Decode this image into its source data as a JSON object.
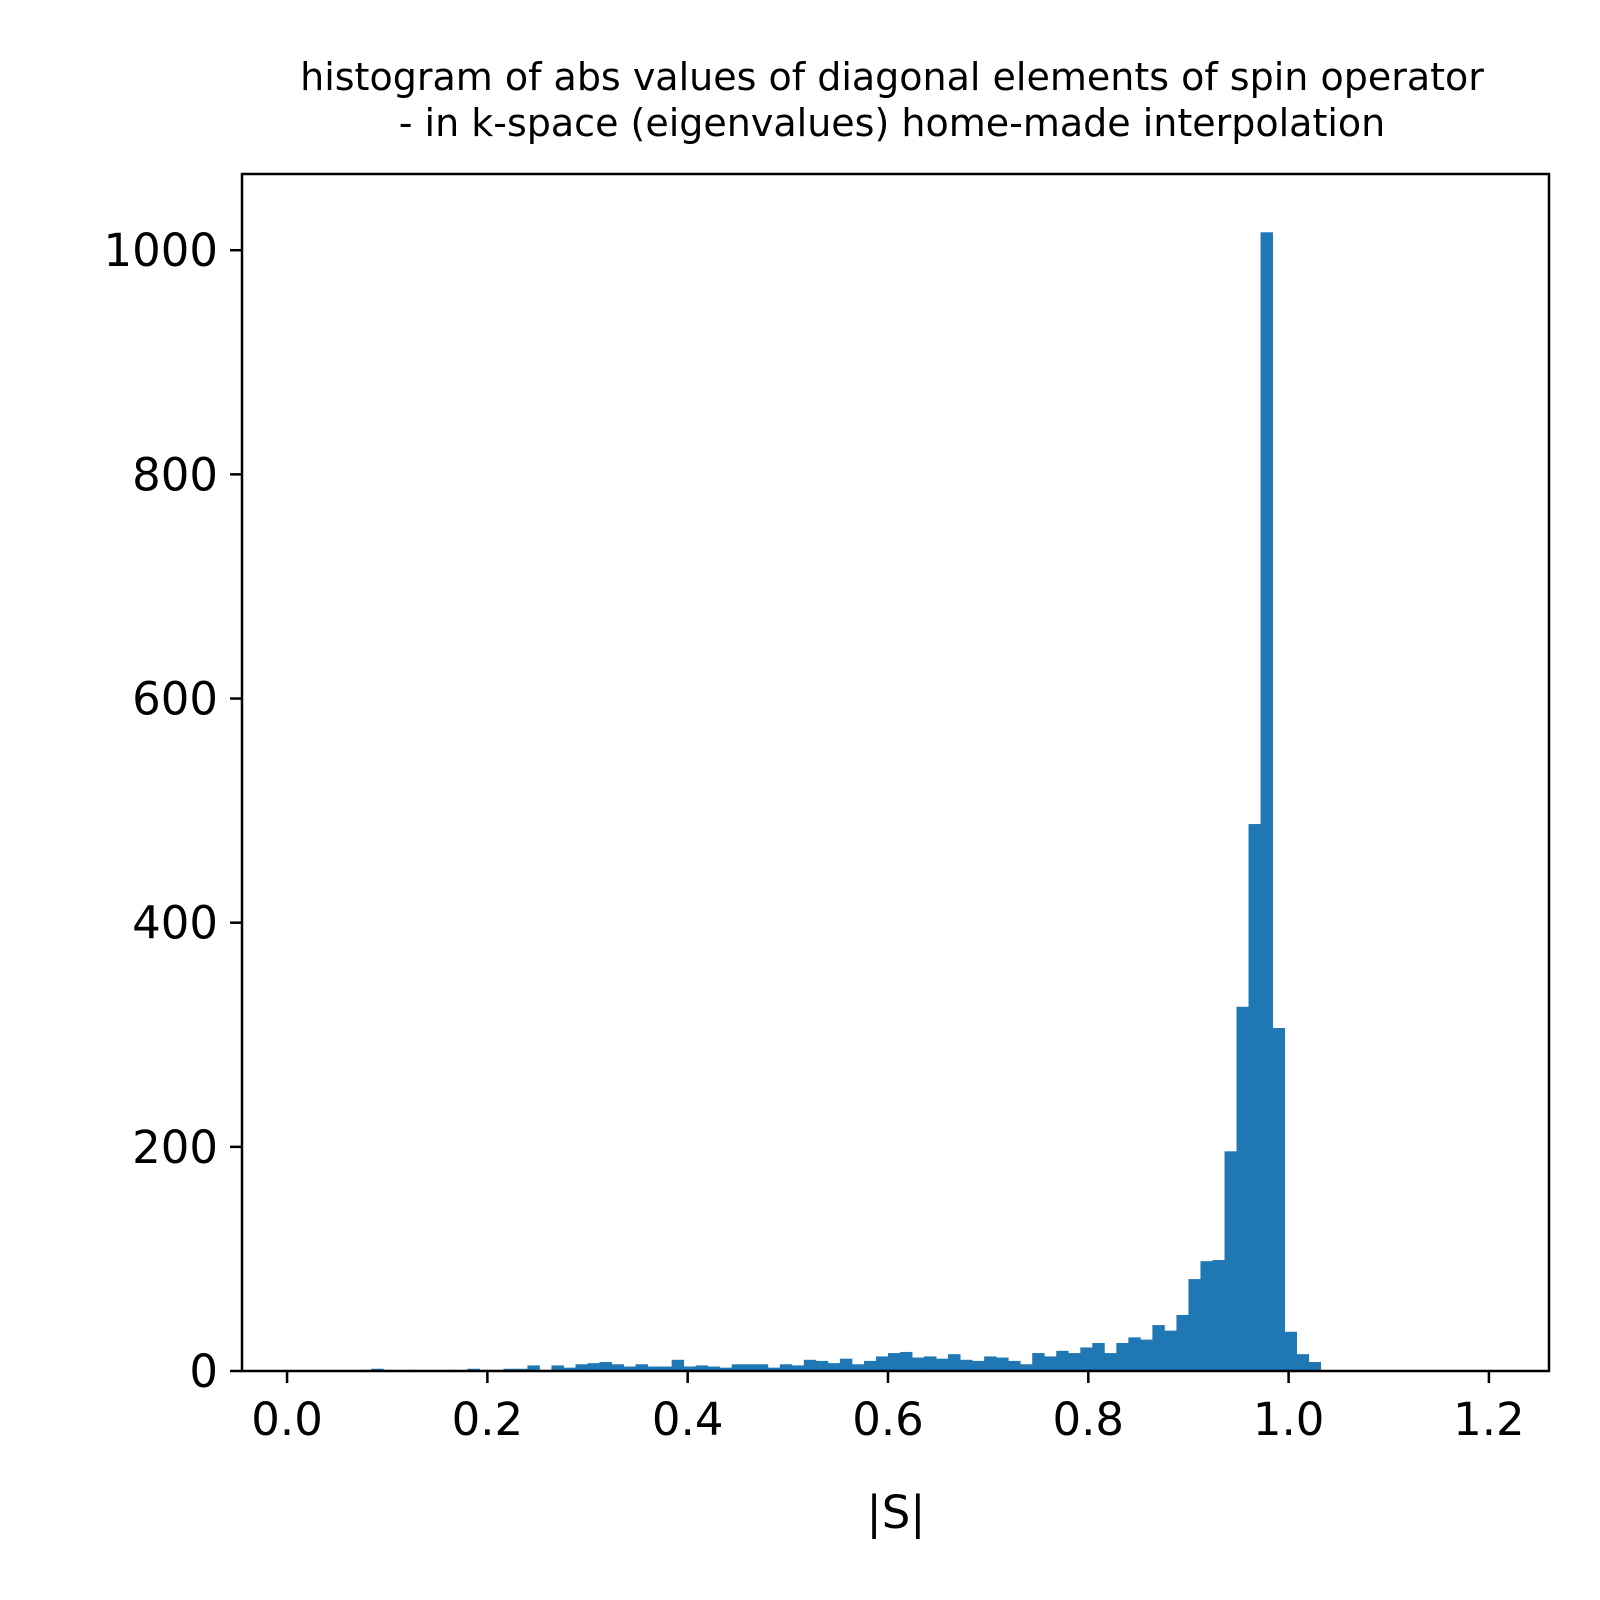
{
  "chart_data": {
    "type": "bar",
    "title_lines": [
      "histogram of abs values of diagonal elements of spin operator",
      "- in k-space (eigenvalues) home-made interpolation"
    ],
    "xlabel": "|S|",
    "ylabel": "",
    "xlim": [
      -0.045,
      1.26
    ],
    "ylim": [
      0,
      1068
    ],
    "xticks": [
      0.0,
      0.2,
      0.4,
      0.6,
      0.8,
      1.0,
      1.2
    ],
    "xtick_labels": [
      "0.0",
      "0.2",
      "0.4",
      "0.6",
      "0.8",
      "1.0",
      "1.2"
    ],
    "yticks": [
      0,
      200,
      400,
      600,
      800,
      1000
    ],
    "ytick_labels": [
      "0",
      "200",
      "400",
      "600",
      "800",
      "1000"
    ],
    "bar_color": "#1f77b4",
    "bin_start": 0.0,
    "bin_width": 0.012,
    "values": [
      0,
      0,
      0,
      0,
      0,
      0,
      1,
      2,
      1,
      0,
      1,
      0,
      0,
      1,
      0,
      2,
      1,
      1,
      2,
      2,
      5,
      1,
      5,
      3,
      6,
      7,
      8,
      6,
      4,
      6,
      4,
      4,
      10,
      4,
      5,
      4,
      3,
      6,
      6,
      6,
      3,
      6,
      5,
      10,
      9,
      7,
      11,
      6,
      9,
      13,
      16,
      17,
      12,
      13,
      11,
      15,
      10,
      9,
      13,
      12,
      9,
      6,
      16,
      13,
      18,
      16,
      21,
      25,
      16,
      25,
      30,
      28,
      41,
      36,
      50,
      82,
      98,
      99,
      196,
      325,
      488,
      1016,
      306,
      35,
      15,
      8,
      0,
      0,
      0,
      0,
      0,
      0,
      0,
      0,
      0,
      0,
      0,
      0,
      0,
      0
    ]
  }
}
